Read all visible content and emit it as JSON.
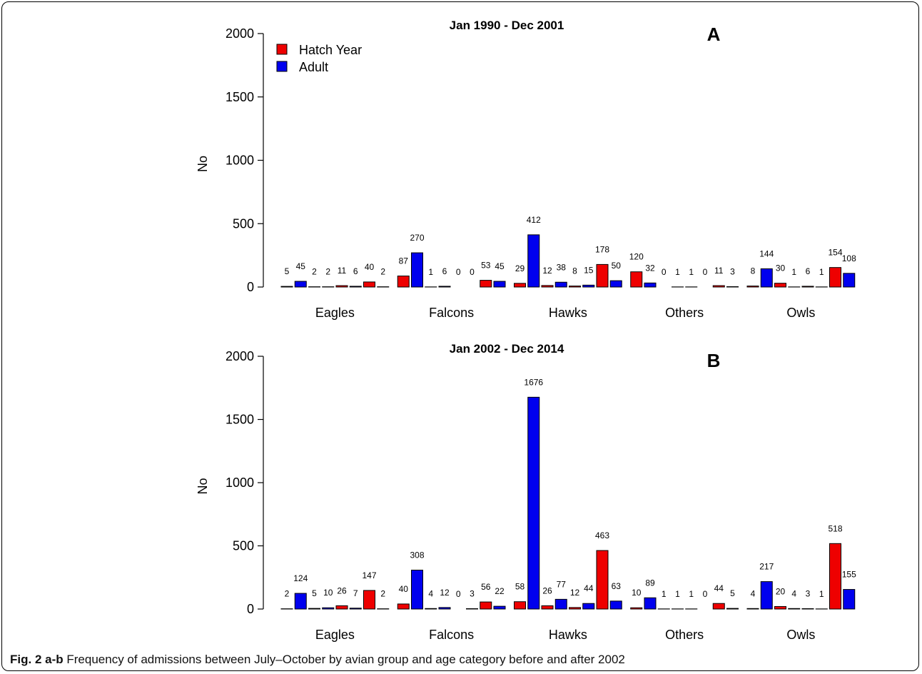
{
  "caption": {
    "label": "Fig. 2",
    "panels": "a-b",
    "text": "Frequency of admissions between July–October by avian group and age category before and after 2002"
  },
  "colors": {
    "hatch_year": "#ee0000",
    "adult": "#0000ee",
    "axis": "#000000"
  },
  "chart_data": [
    {
      "type": "bar",
      "panel_label": "A",
      "title": "Jan 1990 - Dec 2001",
      "ylabel": "No",
      "xlabel": "",
      "ylim": [
        0,
        2000
      ],
      "yticks": [
        0,
        500,
        1000,
        1500,
        2000
      ],
      "grid": false,
      "legend": {
        "placement": "top-left",
        "entries": [
          "Hatch Year",
          "Adult"
        ]
      },
      "groups": [
        {
          "name": "Eagles",
          "values": [
            5,
            45,
            2,
            2,
            11,
            6,
            40,
            2
          ],
          "kinds": [
            "h",
            "a",
            "h",
            "a",
            "h",
            "a",
            "h",
            "a"
          ]
        },
        {
          "name": "Falcons",
          "values": [
            87,
            270,
            1,
            6,
            0,
            0,
            53,
            45
          ],
          "kinds": [
            "h",
            "a",
            "h",
            "a",
            "h",
            "a",
            "h",
            "a"
          ]
        },
        {
          "name": "Hawks",
          "values": [
            29,
            412,
            12,
            38,
            8,
            15,
            178,
            50
          ],
          "kinds": [
            "h",
            "a",
            "h",
            "a",
            "h",
            "a",
            "h",
            "a"
          ]
        },
        {
          "name": "Others",
          "values": [
            120,
            32,
            0,
            1,
            1,
            0,
            11,
            3
          ],
          "kinds": [
            "h",
            "a",
            "h",
            "a",
            "h",
            "a",
            "h",
            "a"
          ]
        },
        {
          "name": "Owls",
          "values": [
            8,
            144,
            30,
            1,
            6,
            1,
            154,
            108
          ],
          "kinds": [
            "h",
            "a",
            "h",
            "a",
            "h",
            "a",
            "h",
            "a"
          ]
        }
      ]
    },
    {
      "type": "bar",
      "panel_label": "B",
      "title": "Jan 2002 - Dec 2014",
      "ylabel": "No",
      "xlabel": "",
      "ylim": [
        0,
        2000
      ],
      "yticks": [
        0,
        500,
        1000,
        1500,
        2000
      ],
      "grid": false,
      "legend": null,
      "groups": [
        {
          "name": "Eagles",
          "values": [
            2,
            124,
            5,
            10,
            26,
            7,
            147,
            2
          ],
          "kinds": [
            "h",
            "a",
            "h",
            "a",
            "h",
            "a",
            "h",
            "a"
          ]
        },
        {
          "name": "Falcons",
          "values": [
            40,
            308,
            4,
            12,
            0,
            3,
            56,
            22
          ],
          "kinds": [
            "h",
            "a",
            "h",
            "a",
            "h",
            "a",
            "h",
            "a"
          ]
        },
        {
          "name": "Hawks",
          "values": [
            58,
            1676,
            26,
            77,
            12,
            44,
            463,
            63
          ],
          "kinds": [
            "h",
            "a",
            "h",
            "a",
            "h",
            "a",
            "h",
            "a"
          ]
        },
        {
          "name": "Others",
          "values": [
            10,
            89,
            1,
            1,
            1,
            0,
            44,
            5
          ],
          "kinds": [
            "h",
            "a",
            "h",
            "a",
            "h",
            "a",
            "h",
            "a"
          ]
        },
        {
          "name": "Owls",
          "values": [
            4,
            217,
            20,
            4,
            3,
            1,
            518,
            155
          ],
          "kinds": [
            "h",
            "a",
            "h",
            "a",
            "h",
            "a",
            "h",
            "a"
          ]
        }
      ]
    }
  ]
}
